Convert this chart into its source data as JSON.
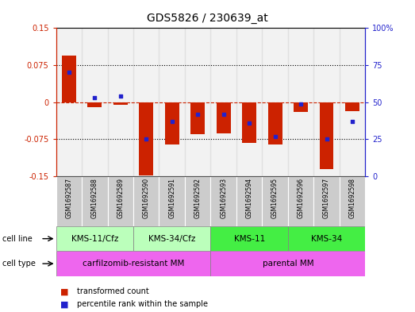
{
  "title": "GDS5826 / 230639_at",
  "samples": [
    "GSM1692587",
    "GSM1692588",
    "GSM1692589",
    "GSM1692590",
    "GSM1692591",
    "GSM1692592",
    "GSM1692593",
    "GSM1692594",
    "GSM1692595",
    "GSM1692596",
    "GSM1692597",
    "GSM1692598"
  ],
  "transformed_count": [
    0.095,
    -0.01,
    -0.005,
    -0.148,
    -0.085,
    -0.065,
    -0.063,
    -0.083,
    -0.085,
    -0.02,
    -0.135,
    -0.018
  ],
  "percentile_rank_pct": [
    70,
    53,
    54,
    25,
    37,
    42,
    42,
    36,
    27,
    49,
    25,
    37
  ],
  "ylim_left": [
    -0.15,
    0.15
  ],
  "ylim_right": [
    0,
    100
  ],
  "yticks_left": [
    -0.15,
    -0.075,
    0,
    0.075,
    0.15
  ],
  "yticks_right": [
    0,
    25,
    50,
    75,
    100
  ],
  "hline_vals": [
    -0.075,
    0,
    0.075
  ],
  "cell_line_groups": [
    {
      "label": "KMS-11/Cfz",
      "start": 0,
      "end": 3,
      "light": true
    },
    {
      "label": "KMS-34/Cfz",
      "start": 3,
      "end": 6,
      "light": true
    },
    {
      "label": "KMS-11",
      "start": 6,
      "end": 9,
      "light": false
    },
    {
      "label": "KMS-34",
      "start": 9,
      "end": 12,
      "light": false
    }
  ],
  "cell_type_groups": [
    {
      "label": "carfilzomib-resistant MM",
      "start": 0,
      "end": 6
    },
    {
      "label": "parental MM",
      "start": 6,
      "end": 12
    }
  ],
  "bar_color": "#cc2200",
  "blue_color": "#2222cc",
  "bar_width": 0.55,
  "left_label_color": "#cc2200",
  "right_label_color": "#2222cc",
  "background_color": "#ffffff",
  "sample_bg_color": "#cccccc",
  "cell_line_light_color": "#bbffbb",
  "cell_line_dark_color": "#44ee44",
  "cell_type_color": "#ee66ee"
}
